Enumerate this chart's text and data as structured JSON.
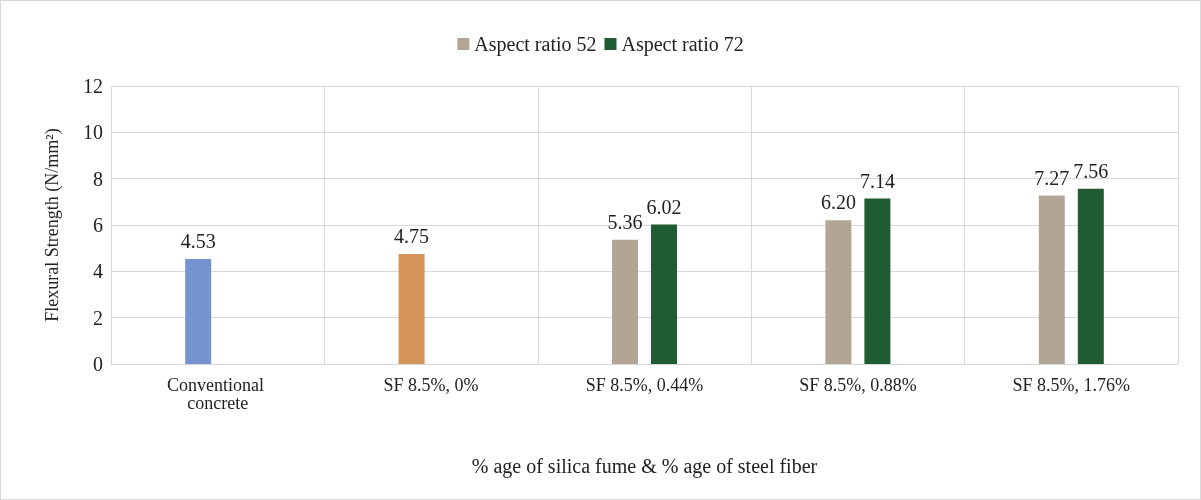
{
  "chart_data": {
    "type": "bar",
    "xlabel": "% age of silica fume & % age of steel fiber",
    "ylabel": "Flexural Strength (N/mm²)",
    "categories": [
      "Conventional concrete",
      "SF 8.5%, 0%",
      "SF 8.5%, 0.44%",
      "SF 8.5%, 0.88%",
      "SF 8.5%, 1.76%"
    ],
    "series": [
      {
        "name": "Aspect ratio 52",
        "color": "#b3a596",
        "values": [
          null,
          null,
          5.36,
          6.2,
          7.27
        ],
        "value_labels": [
          null,
          null,
          "5.36",
          "6.20",
          "7.27"
        ]
      },
      {
        "name": "Aspect ratio 72",
        "color": "#1f5c34",
        "values": [
          null,
          null,
          6.02,
          7.14,
          7.56
        ],
        "value_labels": [
          null,
          null,
          "6.02",
          "7.14",
          "7.56"
        ]
      },
      {
        "colors": [
          "#7493cf",
          "#d49358",
          null,
          null,
          null
        ],
        "values": [
          4.53,
          4.75,
          null,
          null,
          null
        ],
        "value_labels": [
          "4.53",
          "4.75",
          null,
          null,
          null
        ]
      }
    ],
    "ylim": [
      0,
      12
    ],
    "yticks": [
      0,
      2,
      4,
      6,
      8,
      10,
      12
    ],
    "grid": true,
    "legend": "top"
  }
}
